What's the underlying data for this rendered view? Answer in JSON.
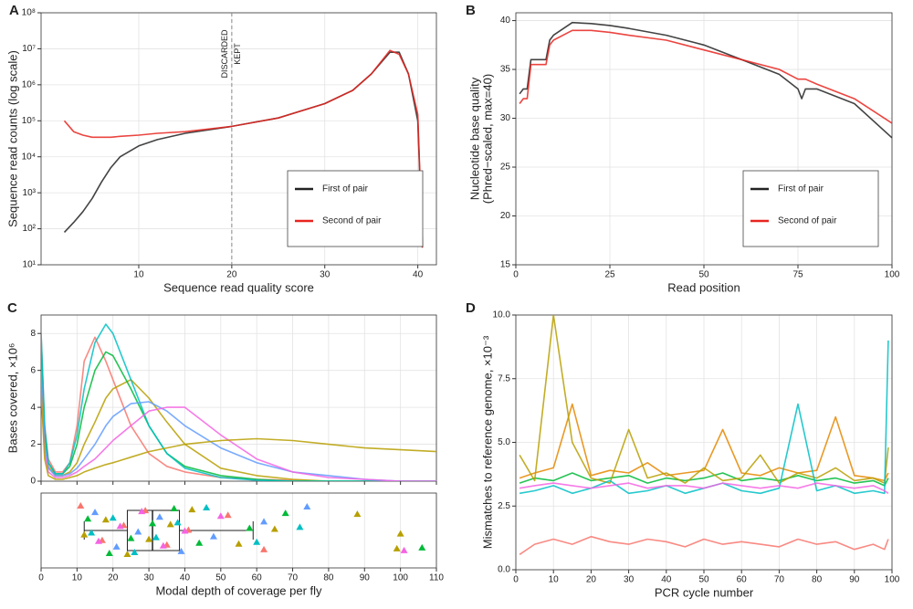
{
  "chart_data": [
    {
      "type": "line",
      "panel": "A",
      "xlabel": "Sequence read quality score",
      "ylabel": [
        "Sequence read counts (log scale)"
      ],
      "log_y": true,
      "xlim": [
        -0.5,
        42
      ],
      "ylim": [
        10,
        100000000
      ],
      "xticks": [
        10,
        20,
        30,
        40
      ],
      "yticks": [
        {
          "value": 10,
          "label": "10¹"
        },
        {
          "value": 100,
          "label": "10²"
        },
        {
          "value": 1000,
          "label": "10³"
        },
        {
          "value": 10000,
          "label": "10⁴"
        },
        {
          "value": 100000,
          "label": "10⁵"
        },
        {
          "value": 1000000,
          "label": "10⁶"
        },
        {
          "value": 10000000,
          "label": "10⁷"
        },
        {
          "value": 100000000,
          "label": "10⁸"
        }
      ],
      "grid": true,
      "vline": 20,
      "annotations": [
        "DISCARDED",
        "KEPT"
      ],
      "legend": "lower right",
      "x": [
        2,
        3,
        4,
        5,
        6,
        7,
        8,
        10,
        12,
        15,
        20,
        25,
        30,
        33,
        35,
        37,
        38,
        39,
        40,
        40.5
      ],
      "series": [
        {
          "name": "First of pair",
          "color": "#222222",
          "values": [
            80,
            150,
            300,
            700,
            2000,
            5000,
            10000,
            20000,
            30000,
            45000,
            70000,
            120000,
            300000,
            700000,
            2000000,
            8000000,
            8000000,
            2000000,
            100000,
            30
          ]
        },
        {
          "name": "Second of pair",
          "color": "#e8251f",
          "values": [
            100000,
            50000,
            40000,
            35000,
            35000,
            35000,
            37000,
            40000,
            45000,
            50000,
            70000,
            120000,
            300000,
            700000,
            2000000,
            9000000,
            7000000,
            2000000,
            150000,
            30
          ]
        }
      ]
    },
    {
      "type": "line",
      "panel": "B",
      "xlabel": "Read position",
      "ylabel": [
        "Nucleotide base quality",
        "(Phred−scaled, max=40)"
      ],
      "xlim": [
        0,
        100
      ],
      "ylim": [
        15,
        40.8
      ],
      "xticks": [
        0,
        25,
        50,
        75,
        100
      ],
      "yticks": [
        15,
        20,
        25,
        30,
        35,
        40
      ],
      "grid": true,
      "legend": "lower right",
      "x": [
        1,
        2,
        3,
        4,
        5,
        6,
        8,
        9,
        10,
        15,
        20,
        25,
        30,
        40,
        50,
        60,
        70,
        75,
        76,
        77,
        80,
        90,
        100
      ],
      "series": [
        {
          "name": "First of pair",
          "color": "#222222",
          "values": [
            32.5,
            33,
            33,
            36,
            36,
            36,
            36,
            38,
            38.5,
            39.8,
            39.7,
            39.5,
            39.2,
            38.5,
            37.5,
            36,
            34.5,
            33,
            32,
            33,
            33,
            31.5,
            28
          ]
        },
        {
          "name": "Second of pair",
          "color": "#e8251f",
          "values": [
            31.5,
            32,
            32,
            35.5,
            35.5,
            35.5,
            35.5,
            37.5,
            38,
            39,
            39,
            38.8,
            38.5,
            38,
            37,
            36,
            35,
            34,
            34,
            34,
            33.5,
            32,
            29.5
          ]
        }
      ]
    },
    {
      "type": "line",
      "panel": "C",
      "ylabel": [
        "Bases covered, ×10⁶"
      ],
      "xlim": [
        0,
        110
      ],
      "ylim": [
        0,
        9
      ],
      "xticks": [
        0,
        10,
        20,
        30,
        40,
        50,
        60,
        70,
        80,
        90,
        100,
        110
      ],
      "show_xtick_labels": false,
      "yticks": [
        0,
        2,
        4,
        6,
        8
      ],
      "grid": true,
      "x": [
        0,
        1,
        2,
        4,
        6,
        8,
        10,
        12,
        15,
        18,
        20,
        25,
        30,
        35,
        40,
        50,
        60,
        70,
        80,
        90,
        100,
        110
      ],
      "series": [
        {
          "color": "#F8766D",
          "values": [
            8,
            3,
            1.2,
            0.5,
            0.5,
            1,
            3,
            6.5,
            7.8,
            6.5,
            5.5,
            3,
            1.5,
            0.8,
            0.5,
            0.2,
            0.1,
            0.05,
            0,
            0,
            0,
            0
          ]
        },
        {
          "color": "#B79F00",
          "values": [
            7,
            2.5,
            0.8,
            0.3,
            0.3,
            0.5,
            1,
            2,
            3.2,
            4.5,
            5,
            5.5,
            4.5,
            3.2,
            2,
            0.7,
            0.3,
            0.1,
            0,
            0,
            0,
            0
          ]
        },
        {
          "color": "#00BA38",
          "values": [
            7.5,
            2.8,
            1,
            0.4,
            0.4,
            0.8,
            2,
            4,
            6,
            7,
            6.8,
            5,
            3,
            1.5,
            0.8,
            0.3,
            0.1,
            0,
            0,
            0,
            0,
            0
          ]
        },
        {
          "color": "#00BFC4",
          "values": [
            8,
            3,
            1,
            0.4,
            0.4,
            1,
            2.5,
            5,
            7.5,
            8.5,
            8,
            5.5,
            3,
            1.5,
            0.7,
            0.2,
            0.05,
            0,
            0,
            0,
            0,
            0
          ]
        },
        {
          "color": "#619CFF",
          "values": [
            6,
            2,
            0.7,
            0.3,
            0.3,
            0.4,
            0.7,
            1.2,
            2,
            3,
            3.5,
            4.2,
            4.3,
            3.8,
            3,
            1.8,
            1,
            0.5,
            0.3,
            0.1,
            0,
            0
          ]
        },
        {
          "color": "#F564E3",
          "values": [
            5,
            1.5,
            0.5,
            0.2,
            0.2,
            0.3,
            0.5,
            0.8,
            1.2,
            1.8,
            2.2,
            3,
            3.8,
            4,
            4,
            2.5,
            1.2,
            0.5,
            0.2,
            0.1,
            0,
            0
          ]
        },
        {
          "color": "#B79F00",
          "values": [
            5,
            1.2,
            0.3,
            0.1,
            0.1,
            0.2,
            0.3,
            0.5,
            0.7,
            0.9,
            1,
            1.3,
            1.6,
            1.8,
            2,
            2.2,
            2.3,
            2.2,
            2,
            1.8,
            1.7,
            1.6
          ]
        }
      ]
    },
    {
      "type": "box",
      "xlabel": "Modal depth of coverage per fly",
      "xlim": [
        0,
        110
      ],
      "xticks": [
        0,
        10,
        20,
        30,
        40,
        50,
        60,
        70,
        80,
        90,
        100,
        110
      ],
      "grid": true,
      "box": {
        "whisker_low": 12,
        "q1": 24,
        "median": 31,
        "q3": 38.5,
        "whisker_high": 59
      },
      "series": [
        {
          "color": "#F8766D",
          "values": [
            11,
            17,
            23,
            29,
            35,
            41,
            52,
            62
          ]
        },
        {
          "color": "#B79F00",
          "values": [
            12,
            18,
            24,
            30,
            36,
            42,
            55,
            65,
            88,
            99,
            100
          ]
        },
        {
          "color": "#00BA38",
          "values": [
            13,
            19,
            25,
            31,
            37,
            44,
            58,
            68,
            106
          ]
        },
        {
          "color": "#00BFC4",
          "values": [
            14,
            20,
            26,
            32,
            38,
            46,
            60,
            72
          ]
        },
        {
          "color": "#619CFF",
          "values": [
            15,
            21,
            27,
            33,
            39,
            48,
            62,
            74
          ]
        },
        {
          "color": "#F564E3",
          "values": [
            16,
            22,
            28,
            34,
            40,
            50,
            101
          ]
        }
      ]
    },
    {
      "type": "line",
      "panel": "D",
      "xlabel": "PCR cycle number",
      "ylabel": [
        "Mismatches to reference genome, ×10⁻³"
      ],
      "xlim": [
        0,
        100
      ],
      "ylim": [
        0,
        10
      ],
      "xticks": [
        0,
        10,
        20,
        30,
        40,
        50,
        60,
        70,
        80,
        90,
        100
      ],
      "yticks": [
        {
          "value": 0,
          "label": "0.0"
        },
        {
          "value": 2.5,
          "label": "2.5"
        },
        {
          "value": 5,
          "label": "5.0"
        },
        {
          "value": 7.5,
          "label": "7.5"
        },
        {
          "value": 10,
          "label": "10.0"
        }
      ],
      "grid": true,
      "x": [
        1,
        5,
        10,
        15,
        20,
        25,
        30,
        35,
        40,
        45,
        50,
        55,
        60,
        65,
        70,
        75,
        80,
        85,
        90,
        95,
        98,
        99
      ],
      "series": [
        {
          "color": "#F8766D",
          "values": [
            0.6,
            1.0,
            1.2,
            1.0,
            1.3,
            1.1,
            1.0,
            1.2,
            1.1,
            0.9,
            1.2,
            1.0,
            1.1,
            1.0,
            0.9,
            1.2,
            1.0,
            1.1,
            0.8,
            1.0,
            0.8,
            1.2
          ]
        },
        {
          "color": "#00BA38",
          "values": [
            3.4,
            3.6,
            3.5,
            3.8,
            3.5,
            3.6,
            3.7,
            3.4,
            3.6,
            3.5,
            3.6,
            3.8,
            3.5,
            3.6,
            3.5,
            3.7,
            3.5,
            3.6,
            3.4,
            3.5,
            3.3,
            3.6
          ]
        },
        {
          "color": "#E58700",
          "values": [
            3.6,
            3.8,
            4.0,
            6.5,
            3.7,
            3.9,
            3.8,
            4.2,
            3.7,
            3.8,
            3.9,
            5.5,
            3.8,
            3.7,
            4.0,
            3.8,
            3.9,
            6.0,
            3.7,
            3.6,
            3.5,
            3.8
          ]
        },
        {
          "color": "#B79F00",
          "values": [
            4.5,
            3.5,
            10,
            5.0,
            3.6,
            3.4,
            5.5,
            3.6,
            3.8,
            3.4,
            4.0,
            3.5,
            3.6,
            4.5,
            3.4,
            3.8,
            3.6,
            4.0,
            3.5,
            3.6,
            3.4,
            4.8
          ]
        },
        {
          "color": "#00BFC4",
          "values": [
            3.0,
            3.1,
            3.3,
            3.0,
            3.2,
            3.5,
            3.0,
            3.1,
            3.3,
            3.0,
            3.2,
            3.4,
            3.1,
            3.0,
            3.2,
            6.5,
            3.1,
            3.3,
            3.0,
            3.1,
            3.0,
            9.0
          ]
        },
        {
          "color": "#F564E3",
          "values": [
            3.2,
            3.3,
            3.4,
            3.3,
            3.2,
            3.3,
            3.4,
            3.2,
            3.3,
            3.3,
            3.2,
            3.4,
            3.3,
            3.2,
            3.3,
            3.2,
            3.4,
            3.3,
            3.2,
            3.3,
            3.1,
            3.0
          ]
        }
      ]
    }
  ]
}
